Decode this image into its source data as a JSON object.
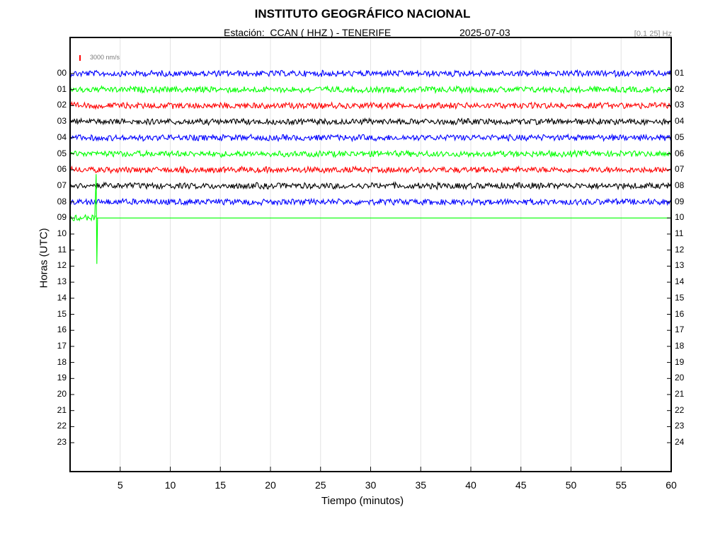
{
  "header": {
    "title": "INSTITUTO GEOGRÁFICO NACIONAL",
    "station_text": "Estación:  CCAN ( HHZ ) - TENERIFE",
    "date": "2025-07-03",
    "filter_band": "[0.1 25] Hz"
  },
  "chart_data": {
    "type": "line",
    "title": "INSTITUTO GEOGRÁFICO NACIONAL",
    "xlabel": "Tiempo (minutos)",
    "ylabel": "Horas (UTC)",
    "xlim": [
      0,
      60
    ],
    "x_ticks": [
      "5",
      "10",
      "15",
      "20",
      "25",
      "30",
      "35",
      "40",
      "45",
      "50",
      "55",
      "60"
    ],
    "y_ticks_left": [
      "00",
      "01",
      "02",
      "03",
      "04",
      "05",
      "06",
      "07",
      "08",
      "09",
      "10",
      "11",
      "12",
      "13",
      "14",
      "15",
      "16",
      "17",
      "18",
      "19",
      "20",
      "21",
      "22",
      "23"
    ],
    "y_ticks_right": [
      "01",
      "02",
      "03",
      "04",
      "05",
      "06",
      "07",
      "08",
      "09",
      "10",
      "11",
      "12",
      "13",
      "14",
      "15",
      "16",
      "17",
      "18",
      "19",
      "20",
      "21",
      "22",
      "23",
      "24"
    ],
    "scale_bar": {
      "label": "3000 nm/s",
      "color": "#ff0000"
    },
    "grid": true,
    "color_cycle": [
      "#0000ff",
      "#00ff00",
      "#ff0000",
      "#000000"
    ],
    "traces": [
      {
        "hour": "00",
        "color": "#0000ff",
        "x_start": 0,
        "x_end": 60
      },
      {
        "hour": "01",
        "color": "#00ff00",
        "x_start": 0,
        "x_end": 60
      },
      {
        "hour": "02",
        "color": "#ff0000",
        "x_start": 0,
        "x_end": 60
      },
      {
        "hour": "03",
        "color": "#000000",
        "x_start": 0,
        "x_end": 60
      },
      {
        "hour": "04",
        "color": "#0000ff",
        "x_start": 0,
        "x_end": 60
      },
      {
        "hour": "05",
        "color": "#00ff00",
        "x_start": 0,
        "x_end": 60
      },
      {
        "hour": "06",
        "color": "#ff0000",
        "x_start": 0,
        "x_end": 60
      },
      {
        "hour": "07",
        "color": "#000000",
        "x_start": 0,
        "x_end": 60
      },
      {
        "hour": "08",
        "color": "#0000ff",
        "x_start": 0,
        "x_end": 60
      },
      {
        "hour": "09",
        "color": "#00ff00",
        "x_start": 0,
        "x_end": 2.6,
        "flat_until": 60,
        "spike_at": 2.6
      }
    ]
  }
}
